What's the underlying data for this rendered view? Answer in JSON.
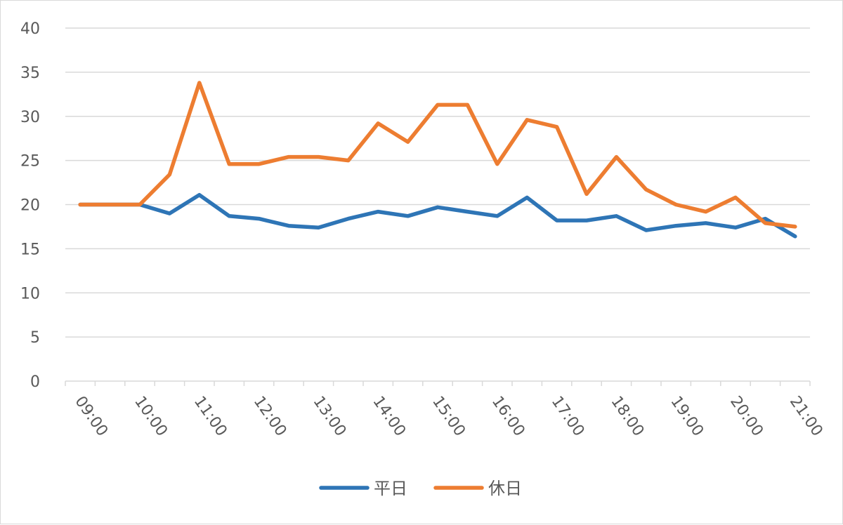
{
  "chart_data": {
    "type": "line",
    "title": "",
    "xlabel": "",
    "ylabel": "",
    "ylim": [
      0,
      40
    ],
    "yticks": [
      "0",
      "5",
      "10",
      "15",
      "20",
      "25",
      "30",
      "35",
      "40"
    ],
    "grid": true,
    "legend_position": "bottom",
    "x": [
      "09:00",
      "09:30",
      "10:00",
      "10:30",
      "11:00",
      "11:30",
      "12:00",
      "12:30",
      "13:00",
      "13:30",
      "14:00",
      "14:30",
      "15:00",
      "15:30",
      "16:00",
      "16:30",
      "17:00",
      "17:30",
      "18:00",
      "18:30",
      "19:00",
      "19:30",
      "20:00",
      "20:30",
      "21:00"
    ],
    "xtick_labels": [
      "09:00",
      "10:00",
      "11:00",
      "12:00",
      "13:00",
      "14:00",
      "15:00",
      "16:00",
      "17:00",
      "18:00",
      "19:00",
      "20:00",
      "21:00"
    ],
    "series": [
      {
        "name": "平日",
        "color": "#2E75B6",
        "values": [
          20,
          20,
          20,
          19,
          21.1,
          18.7,
          18.4,
          17.6,
          17.4,
          18.4,
          19.2,
          18.7,
          19.7,
          19.2,
          18.7,
          20.8,
          18.2,
          18.2,
          18.7,
          17.1,
          17.6,
          17.9,
          17.4,
          18.4,
          16.4
        ]
      },
      {
        "name": "休日",
        "color": "#ED7D31",
        "values": [
          20,
          20,
          20,
          23.4,
          33.8,
          24.6,
          24.6,
          25.4,
          25.4,
          25.0,
          29.2,
          27.1,
          31.3,
          31.3,
          24.6,
          29.6,
          28.8,
          21.2,
          25.4,
          21.7,
          20.0,
          19.2,
          20.8,
          17.9,
          17.5
        ]
      }
    ]
  }
}
